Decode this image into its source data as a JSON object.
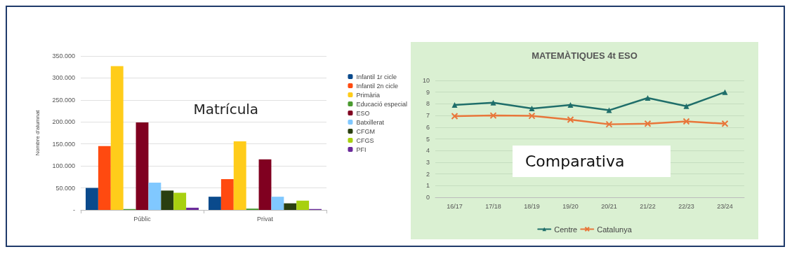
{
  "chart_data": [
    {
      "type": "bar",
      "ylabel": "Nombre d'alumnat",
      "categories": [
        "Públic",
        "Privat"
      ],
      "legend": "right",
      "grid": "y",
      "annotations": [
        "Matrícula"
      ],
      "ylim": [
        0,
        350000
      ],
      "yticks": [
        {
          "value": 0,
          "label": "-"
        },
        {
          "value": 50000,
          "label": "50.000"
        },
        {
          "value": 100000,
          "label": "100.000"
        },
        {
          "value": 150000,
          "label": "150.000"
        },
        {
          "value": 200000,
          "label": "200.000"
        },
        {
          "value": 250000,
          "label": "250.000"
        },
        {
          "value": 300000,
          "label": "300.000"
        },
        {
          "value": 350000,
          "label": "350.000"
        }
      ],
      "series": [
        {
          "name": "Infantil 1r cicle",
          "color": "#0a4a8c",
          "values": [
            50000,
            30000
          ]
        },
        {
          "name": "Infantil 2n cicle",
          "color": "#ff4a10",
          "values": [
            145000,
            70000
          ]
        },
        {
          "name": "Primària",
          "color": "#ffcc1a",
          "values": [
            327000,
            156000
          ]
        },
        {
          "name": "Educació especial",
          "color": "#4a9a30",
          "values": [
            2000,
            3000
          ]
        },
        {
          "name": "ESO",
          "color": "#800020",
          "values": [
            199000,
            115000
          ]
        },
        {
          "name": "Batxillerat",
          "color": "#80c8ff",
          "values": [
            62000,
            30000
          ]
        },
        {
          "name": "CFGM",
          "color": "#2a3f10",
          "values": [
            44000,
            15000
          ]
        },
        {
          "name": "CFGS",
          "color": "#a8d010",
          "values": [
            39000,
            21000
          ]
        },
        {
          "name": "PFI",
          "color": "#6a2a9a",
          "values": [
            5000,
            2000
          ]
        }
      ]
    },
    {
      "type": "line",
      "title": "MATEMÀTIQUES 4t ESO",
      "categories": [
        "16/17",
        "17/18",
        "18/19",
        "19/20",
        "20/21",
        "21/22",
        "22/23",
        "23/24"
      ],
      "legend": "bottom",
      "grid": "y",
      "annotations": [
        "Comparativa"
      ],
      "ylim": [
        0,
        10
      ],
      "yticks": [
        0,
        1,
        2,
        3,
        4,
        5,
        6,
        7,
        8,
        9,
        10
      ],
      "series": [
        {
          "name": "Centre",
          "color": "#1f6e6a",
          "marker": "triangle",
          "values": [
            7.9,
            8.1,
            7.6,
            7.9,
            7.45,
            8.5,
            7.8,
            9.0
          ]
        },
        {
          "name": "Catalunya",
          "color": "#e8763a",
          "marker": "cross",
          "values": [
            6.95,
            7.0,
            6.97,
            6.65,
            6.25,
            6.3,
            6.5,
            6.3
          ]
        }
      ]
    }
  ]
}
